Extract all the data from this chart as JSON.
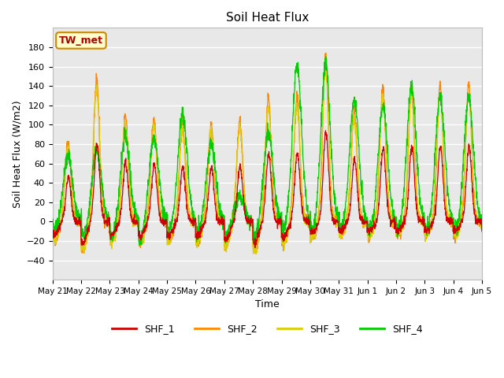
{
  "title": "Soil Heat Flux",
  "ylabel": "Soil Heat Flux (W/m2)",
  "xlabel": "Time",
  "ylim": [
    -60,
    200
  ],
  "yticks": [
    -40,
    -20,
    0,
    20,
    40,
    60,
    80,
    100,
    120,
    140,
    160,
    180
  ],
  "colors": {
    "SHF_1": "#cc0000",
    "SHF_2": "#ff8800",
    "SHF_3": "#ddcc00",
    "SHF_4": "#00cc00"
  },
  "legend_label": "TW_met",
  "legend_box_facecolor": "#ffffcc",
  "legend_box_edgecolor": "#cc8800",
  "background_color": "#e8e8e8",
  "grid_color": "#ffffff",
  "tick_labels": [
    "May 21",
    "May 22",
    "May 23",
    "May 24",
    "May 25",
    "May 26",
    "May 27",
    "May 28",
    "May 29",
    "May 30",
    "May 31",
    "Jun 1",
    "Jun 2",
    "Jun 3",
    "Jun 4",
    "Jun 5"
  ],
  "n_days": 15,
  "pts_per_day": 144
}
